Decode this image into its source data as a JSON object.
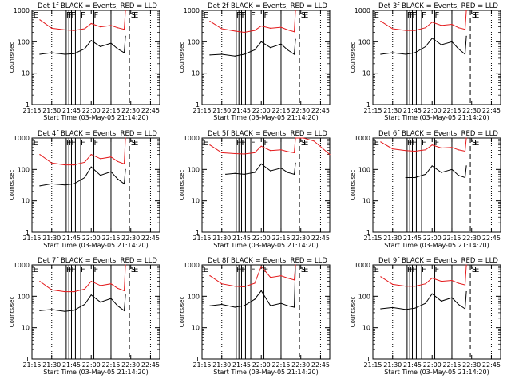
{
  "figure": {
    "xlabel": "Start Time (03-May-05 21:14:20)",
    "ylabel": "Counts/sec",
    "x_ticks": [
      "21:15",
      "21:30",
      "21:45",
      "22:00",
      "22:15",
      "22:30",
      "22:45"
    ],
    "y_ticks": [
      "1",
      "10",
      "100",
      "1000"
    ],
    "event_labels": [
      "E",
      "F",
      "F",
      "F",
      "F",
      "F",
      "S",
      "E"
    ]
  },
  "chart_data": [
    {
      "type": "line",
      "title": "Det 1f BLACK = Events, RED = LLD",
      "ylabel": "Counts/sec",
      "xlabel": "Start Time (03-May-05 21:14:20)",
      "xlim": [
        "21:15",
        "22:52"
      ],
      "ylim": [
        1,
        1000
      ],
      "yscale": "log",
      "series": [
        {
          "name": "BLACK = Events",
          "x": [
            "21:21",
            "21:30",
            "21:40",
            "21:47",
            "21:55",
            "22:00",
            "22:07",
            "22:15",
            "22:20",
            "22:25",
            "22:26"
          ],
          "values": [
            40,
            45,
            40,
            42,
            60,
            110,
            70,
            90,
            60,
            45,
            150
          ]
        },
        {
          "name": "RED = LLD",
          "x": [
            "21:21",
            "21:30",
            "21:40",
            "21:47",
            "21:55",
            "22:00",
            "22:07",
            "22:15",
            "22:20",
            "22:25",
            "22:26"
          ],
          "values": [
            500,
            270,
            240,
            230,
            260,
            380,
            300,
            330,
            280,
            250,
            1000
          ]
        }
      ]
    },
    {
      "type": "line",
      "title": "Det 2f BLACK = Events, RED = LLD",
      "ylabel": "Counts/sec",
      "xlabel": "Start Time (03-May-05 21:14:20)",
      "xlim": [
        "21:15",
        "22:52"
      ],
      "ylim": [
        1,
        1000
      ],
      "yscale": "log",
      "series": [
        {
          "name": "BLACK = Events",
          "x": [
            "21:21",
            "21:30",
            "21:40",
            "21:47",
            "21:55",
            "22:00",
            "22:07",
            "22:15",
            "22:20",
            "22:25",
            "22:26"
          ],
          "values": [
            38,
            40,
            35,
            40,
            55,
            100,
            65,
            85,
            55,
            40,
            120
          ]
        },
        {
          "name": "RED = LLD",
          "x": [
            "21:21",
            "21:30",
            "21:40",
            "21:47",
            "21:55",
            "22:00",
            "22:07",
            "22:15",
            "22:20",
            "22:25",
            "22:26"
          ],
          "values": [
            450,
            260,
            220,
            200,
            230,
            320,
            270,
            290,
            240,
            210,
            1000
          ]
        }
      ]
    },
    {
      "type": "line",
      "title": "Det 3f BLACK = Events, RED = LLD",
      "ylabel": "Counts/sec",
      "xlabel": "Start Time (03-May-05 21:14:20)",
      "xlim": [
        "21:15",
        "22:52"
      ],
      "ylim": [
        1,
        1000
      ],
      "yscale": "log",
      "series": [
        {
          "name": "BLACK = Events",
          "x": [
            "21:21",
            "21:30",
            "21:40",
            "21:47",
            "21:55",
            "22:00",
            "22:07",
            "22:15",
            "22:20",
            "22:25",
            "22:26"
          ],
          "values": [
            40,
            45,
            40,
            45,
            70,
            130,
            80,
            100,
            60,
            40,
            150
          ]
        },
        {
          "name": "RED = LLD",
          "x": [
            "21:21",
            "21:30",
            "21:40",
            "21:47",
            "21:55",
            "22:00",
            "22:07",
            "22:15",
            "22:20",
            "22:25",
            "22:26"
          ],
          "values": [
            450,
            260,
            230,
            230,
            280,
            420,
            330,
            360,
            280,
            250,
            1000
          ]
        }
      ]
    },
    {
      "type": "line",
      "title": "Det 4f BLACK = Events, RED = LLD",
      "ylabel": "Counts/sec",
      "xlabel": "Start Time (03-May-05 21:14:20)",
      "xlim": [
        "21:15",
        "22:52"
      ],
      "ylim": [
        1,
        1000
      ],
      "yscale": "log",
      "series": [
        {
          "name": "BLACK = Events",
          "x": [
            "21:21",
            "21:30",
            "21:40",
            "21:47",
            "21:55",
            "22:00",
            "22:07",
            "22:15",
            "22:20",
            "22:25",
            "22:26"
          ],
          "values": [
            30,
            35,
            32,
            35,
            55,
            120,
            65,
            85,
            50,
            35,
            100
          ]
        },
        {
          "name": "RED = LLD",
          "x": [
            "21:21",
            "21:30",
            "21:40",
            "21:47",
            "21:55",
            "22:00",
            "22:07",
            "22:15",
            "22:20",
            "22:25",
            "22:26"
          ],
          "values": [
            300,
            160,
            140,
            140,
            170,
            300,
            220,
            250,
            180,
            150,
            1000
          ]
        }
      ]
    },
    {
      "type": "line",
      "title": "Det 5f BLACK = Events, RED = LLD",
      "ylabel": "Counts/sec",
      "xlabel": "Start Time (03-May-05 21:14:20)",
      "xlim": [
        "21:15",
        "22:52"
      ],
      "ylim": [
        1,
        1000
      ],
      "yscale": "log",
      "series": [
        {
          "name": "BLACK = Events",
          "x": [
            "21:33",
            "21:40",
            "21:47",
            "21:55",
            "22:00",
            "22:07",
            "22:15",
            "22:20",
            "22:25",
            "22:26"
          ],
          "values": [
            70,
            75,
            70,
            80,
            150,
            90,
            110,
            80,
            70,
            160
          ]
        },
        {
          "name": "RED = LLD",
          "x": [
            "21:21",
            "21:30",
            "21:40",
            "21:47",
            "21:55",
            "22:00",
            "22:07",
            "22:15",
            "22:20",
            "22:25",
            "22:26",
            "22:32",
            "22:40",
            "22:52"
          ],
          "values": [
            600,
            340,
            320,
            310,
            340,
            550,
            400,
            420,
            370,
            340,
            1000,
            1000,
            800,
            300
          ]
        }
      ]
    },
    {
      "type": "line",
      "title": "Det 6f BLACK = Events, RED = LLD",
      "ylabel": "Counts/sec",
      "xlabel": "Start Time (03-May-05 21:14:20)",
      "xlim": [
        "21:15",
        "22:52"
      ],
      "ylim": [
        1,
        1000
      ],
      "yscale": "log",
      "series": [
        {
          "name": "BLACK = Events",
          "x": [
            "21:40",
            "21:47",
            "21:55",
            "22:00",
            "22:07",
            "22:15",
            "22:20",
            "22:25",
            "22:26"
          ],
          "values": [
            55,
            55,
            70,
            130,
            80,
            100,
            65,
            55,
            130
          ]
        },
        {
          "name": "RED = LLD",
          "x": [
            "21:21",
            "21:30",
            "21:40",
            "21:47",
            "21:55",
            "22:00",
            "22:07",
            "22:15",
            "22:20",
            "22:25",
            "22:26"
          ],
          "values": [
            750,
            450,
            400,
            380,
            420,
            600,
            480,
            500,
            420,
            380,
            1000
          ]
        }
      ]
    },
    {
      "type": "line",
      "title": "Det 7f BLACK = Events, RED = LLD",
      "ylabel": "Counts/sec",
      "xlabel": "Start Time (03-May-05 21:14:20)",
      "xlim": [
        "21:15",
        "22:52"
      ],
      "ylim": [
        1,
        1000
      ],
      "yscale": "log",
      "series": [
        {
          "name": "BLACK = Events",
          "x": [
            "21:21",
            "21:30",
            "21:40",
            "21:47",
            "21:55",
            "22:00",
            "22:07",
            "22:15",
            "22:20",
            "22:25",
            "22:26"
          ],
          "values": [
            35,
            38,
            33,
            36,
            55,
            110,
            65,
            85,
            50,
            35,
            110
          ]
        },
        {
          "name": "RED = LLD",
          "x": [
            "21:21",
            "21:30",
            "21:40",
            "21:47",
            "21:55",
            "22:00",
            "22:07",
            "22:15",
            "22:20",
            "22:25",
            "22:26"
          ],
          "values": [
            300,
            160,
            140,
            140,
            170,
            300,
            220,
            250,
            180,
            150,
            1000
          ]
        }
      ]
    },
    {
      "type": "line",
      "title": "Det 8f BLACK = Events, RED = LLD",
      "ylabel": "Counts/sec",
      "xlabel": "Start Time (03-May-05 21:14:20)",
      "xlim": [
        "21:15",
        "22:52"
      ],
      "ylim": [
        1,
        1000
      ],
      "yscale": "log",
      "series": [
        {
          "name": "BLACK = Events",
          "x": [
            "21:21",
            "21:30",
            "21:40",
            "21:47",
            "21:55",
            "22:00",
            "22:07",
            "22:15",
            "22:20",
            "22:25",
            "22:26"
          ],
          "values": [
            50,
            55,
            45,
            50,
            80,
            150,
            50,
            60,
            50,
            45,
            1000
          ]
        },
        {
          "name": "RED = LLD",
          "x": [
            "21:21",
            "21:30",
            "21:40",
            "21:47",
            "21:55",
            "22:00",
            "22:07",
            "22:15",
            "22:20",
            "22:25",
            "22:26"
          ],
          "values": [
            450,
            250,
            210,
            200,
            260,
            900,
            400,
            450,
            380,
            330,
            1000
          ]
        }
      ]
    },
    {
      "type": "line",
      "title": "Det 9f BLACK = Events, RED = LLD",
      "ylabel": "Counts/sec",
      "xlabel": "Start Time (03-May-05 21:14:20)",
      "xlim": [
        "21:15",
        "22:52"
      ],
      "ylim": [
        1,
        1000
      ],
      "yscale": "log",
      "series": [
        {
          "name": "BLACK = Events",
          "x": [
            "21:21",
            "21:30",
            "21:40",
            "21:47",
            "21:55",
            "22:00",
            "22:07",
            "22:15",
            "22:20",
            "22:25",
            "22:26"
          ],
          "values": [
            40,
            44,
            38,
            42,
            60,
            120,
            70,
            90,
            55,
            40,
            140
          ]
        },
        {
          "name": "RED = LLD",
          "x": [
            "21:21",
            "21:30",
            "21:40",
            "21:47",
            "21:55",
            "22:00",
            "22:07",
            "22:15",
            "22:20",
            "22:25",
            "22:26"
          ],
          "values": [
            420,
            240,
            210,
            210,
            250,
            380,
            300,
            320,
            260,
            230,
            1000
          ]
        }
      ]
    }
  ],
  "colors": {
    "events": "#000000",
    "lld": "#e41a1c",
    "axis": "#000000"
  }
}
